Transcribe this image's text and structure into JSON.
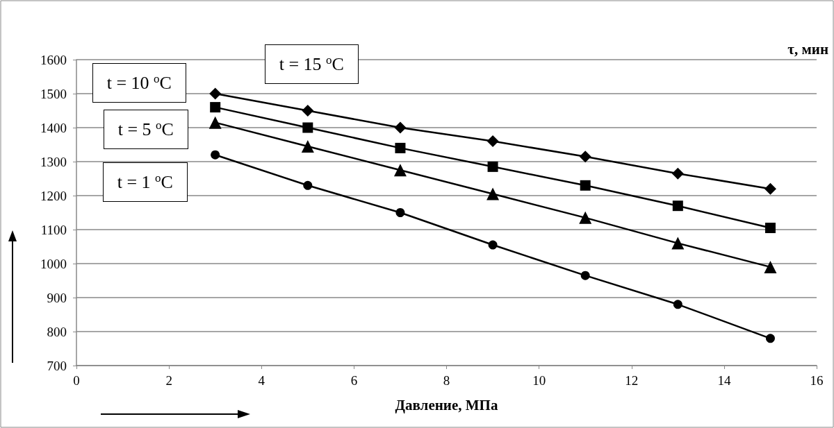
{
  "chart_data": {
    "type": "line",
    "xlabel": "Давление, МПа",
    "ylabel": "τ, мин",
    "x": [
      3,
      5,
      7,
      9,
      11,
      13,
      15
    ],
    "series": [
      {
        "name": "t = 15 $^{o}$C",
        "color": "#000000",
        "marker": "diamond",
        "values": [
          1500,
          1450,
          1400,
          1360,
          1315,
          1265,
          1220
        ]
      },
      {
        "name": "t = 10 $^{o}$C",
        "color": "#000000",
        "marker": "square",
        "values": [
          1460,
          1400,
          1340,
          1285,
          1230,
          1170,
          1105
        ]
      },
      {
        "name": "t = 5 $^{o}$C",
        "color": "#000000",
        "marker": "triangle",
        "values": [
          1415,
          1345,
          1275,
          1205,
          1135,
          1060,
          990
        ]
      },
      {
        "name": "t = 1 $^{o}$C",
        "color": "#000000",
        "marker": "circle",
        "values": [
          1320,
          1230,
          1150,
          1055,
          965,
          880,
          780
        ]
      }
    ],
    "xlim": [
      0,
      16
    ],
    "xticks": [
      0,
      2,
      4,
      6,
      8,
      10,
      12,
      14,
      16
    ],
    "ylim": [
      700,
      1600
    ],
    "yticks": [
      700,
      800,
      900,
      1000,
      1100,
      1200,
      1300,
      1400,
      1500,
      1600
    ],
    "grid": "y",
    "legend": false
  }
}
